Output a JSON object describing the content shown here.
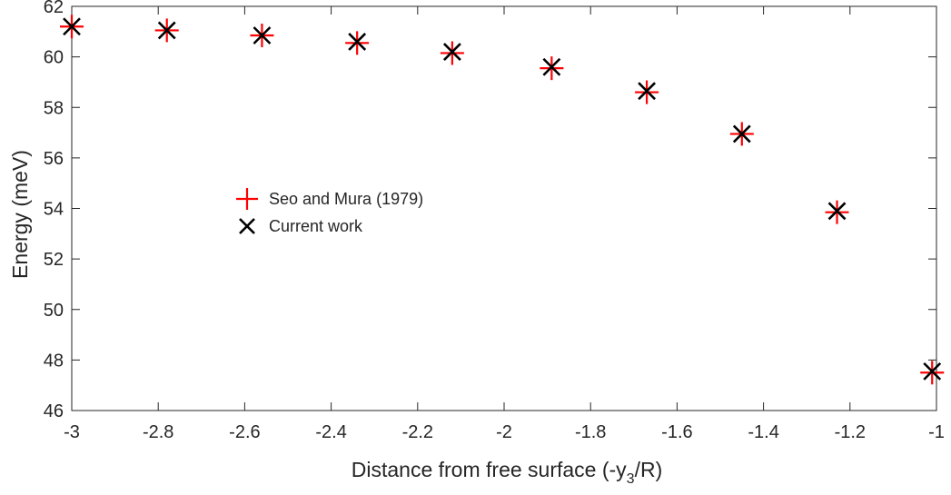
{
  "chart_data": {
    "type": "scatter",
    "title": "",
    "xlabel_prefix": "Distance from free surface (-y",
    "xlabel_subscript": "3",
    "xlabel_suffix": "/R)",
    "ylabel": "Energy (meV)",
    "xlim": [
      -3,
      -1
    ],
    "ylim": [
      46,
      62
    ],
    "xticks": [
      -3,
      -2.8,
      -2.6,
      -2.4,
      -2.2,
      -2,
      -1.8,
      -1.6,
      -1.4,
      -1.2,
      -1
    ],
    "yticks": [
      46,
      48,
      50,
      52,
      54,
      56,
      58,
      60,
      62
    ],
    "xtick_labels": [
      "-3",
      "-2.8",
      "-2.6",
      "-2.4",
      "-2.2",
      "-2",
      "-1.8",
      "-1.6",
      "-1.4",
      "-1.2",
      "-1"
    ],
    "ytick_labels": [
      "46",
      "48",
      "50",
      "52",
      "54",
      "56",
      "58",
      "60",
      "62"
    ],
    "grid": false,
    "legend_position": "center-left",
    "series": [
      {
        "name": "Seo and Mura (1979)",
        "marker": "plus",
        "color": "#ff0000",
        "x": [
          -3.0,
          -2.78,
          -2.56,
          -2.34,
          -2.12,
          -1.89,
          -1.67,
          -1.45,
          -1.23,
          -1.01
        ],
        "y": [
          61.2,
          61.05,
          60.85,
          60.55,
          60.15,
          59.55,
          58.6,
          56.95,
          53.85,
          47.5
        ]
      },
      {
        "name": "Current work",
        "marker": "cross",
        "color": "#000000",
        "x": [
          -3.0,
          -2.78,
          -2.56,
          -2.34,
          -2.12,
          -1.89,
          -1.67,
          -1.45,
          -1.23,
          -1.01
        ],
        "y": [
          61.2,
          61.05,
          60.85,
          60.6,
          60.2,
          59.6,
          58.65,
          56.95,
          53.9,
          47.55
        ]
      }
    ]
  }
}
